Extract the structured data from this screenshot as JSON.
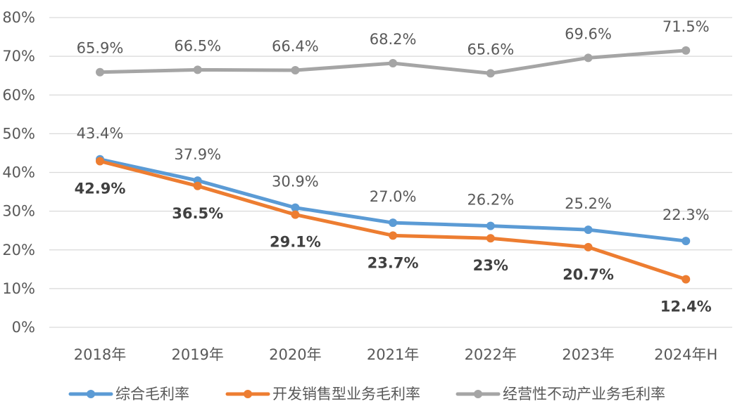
{
  "chart_data": {
    "type": "line",
    "categories": [
      "2018年",
      "2019年",
      "2020年",
      "2021年",
      "2022年",
      "2023年",
      "2024年H"
    ],
    "yticks": [
      "0%",
      "10%",
      "20%",
      "30%",
      "40%",
      "50%",
      "60%",
      "70%",
      "80%"
    ],
    "ylim": [
      0,
      80
    ],
    "grid": true,
    "legend_position": "bottom",
    "series": [
      {
        "name": "综合毛利率",
        "color": "#5b9bd5",
        "values": [
          43.4,
          37.9,
          30.9,
          27.0,
          26.2,
          25.2,
          22.3
        ],
        "labels": [
          "43.4%",
          "37.9%",
          "30.9%",
          "27.0%",
          "26.2%",
          "25.2%",
          "22.3%"
        ]
      },
      {
        "name": "开发销售型业务毛利率",
        "color": "#ed7d31",
        "values": [
          42.9,
          36.5,
          29.1,
          23.7,
          23.0,
          20.7,
          12.4
        ],
        "labels": [
          "42.9%",
          "36.5%",
          "29.1%",
          "23.7%",
          "23%",
          "20.7%",
          "12.4%"
        ]
      },
      {
        "name": "经营性不动产业务毛利率",
        "color": "#a5a5a5",
        "values": [
          65.9,
          66.5,
          66.4,
          68.2,
          65.6,
          69.6,
          71.5
        ],
        "labels": [
          "65.9%",
          "66.5%",
          "66.4%",
          "68.2%",
          "65.6%",
          "69.6%",
          "71.5%"
        ]
      }
    ]
  }
}
